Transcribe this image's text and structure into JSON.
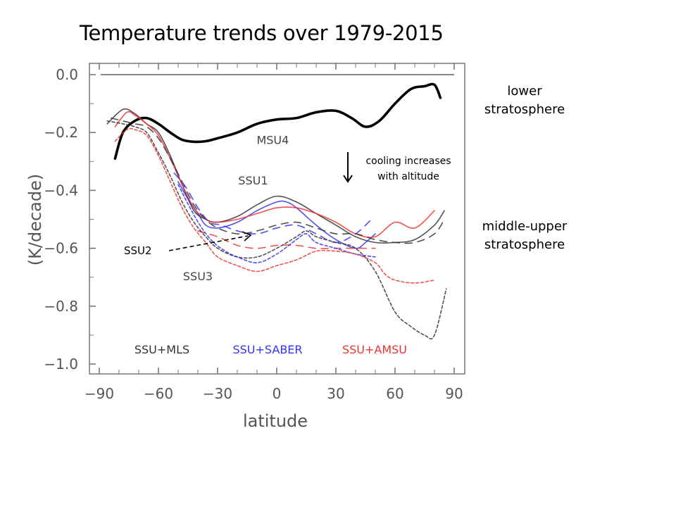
{
  "slide": {
    "title": "Temperature trends over 1979-2015",
    "annotations": {
      "lower": [
        "lower",
        "stratosphere"
      ],
      "middle_upper": [
        "middle-upper",
        "stratosphere"
      ],
      "cooling": [
        "cooling increases",
        "with altitude"
      ],
      "ssu2_pointer": "SSU2"
    }
  },
  "colors": {
    "mls": "#333333",
    "saber": "#3333ee",
    "amsu": "#ee3333",
    "msu4": "#000000",
    "axis": "#777777"
  },
  "chart_data": {
    "type": "line",
    "title": "Temperature trends over 1979-2015",
    "xlabel": "latitude",
    "ylabel": "(K/decade)",
    "xlim": [
      -90,
      90
    ],
    "ylim": [
      -1.05,
      0.0
    ],
    "xticks": [
      -90,
      -60,
      -30,
      0,
      30,
      60,
      90
    ],
    "xtick_labels": [
      "−90",
      "−60",
      "−30",
      "0",
      "30",
      "60",
      "90"
    ],
    "yticks": [
      0.0,
      -0.2,
      -0.4,
      -0.6,
      -0.8,
      -1.0
    ],
    "ytick_labels": [
      "0.0",
      "−0.2",
      "−0.4",
      "−0.6",
      "−0.8",
      "−1.0"
    ],
    "grid": false,
    "reference_line": 0.0,
    "curve_labels": [
      {
        "text": "MSU4",
        "x": -2,
        "y": -0.24
      },
      {
        "text": "SSU1",
        "x": -12,
        "y": -0.38
      },
      {
        "text": "SSU3",
        "x": -40,
        "y": -0.71
      }
    ],
    "legend": [
      {
        "label": "SSU+MLS",
        "color_key": "mls"
      },
      {
        "label": "SSU+SABER",
        "color_key": "saber"
      },
      {
        "label": "SSU+AMSU",
        "color_key": "amsu"
      }
    ],
    "legend_placement": "bottom",
    "series": [
      {
        "name": "MSU4",
        "channel": "MSU4",
        "style": "thick-solid",
        "color_key": "msu4",
        "x": [
          -82,
          -78,
          -72,
          -66,
          -60,
          -54,
          -48,
          -42,
          -36,
          -30,
          -20,
          -10,
          0,
          10,
          20,
          30,
          38,
          45,
          52,
          60,
          68,
          75,
          80,
          83
        ],
        "y": [
          -0.29,
          -0.2,
          -0.16,
          -0.15,
          -0.17,
          -0.2,
          -0.225,
          -0.232,
          -0.23,
          -0.22,
          -0.2,
          -0.17,
          -0.155,
          -0.15,
          -0.13,
          -0.125,
          -0.15,
          -0.18,
          -0.16,
          -0.1,
          -0.05,
          -0.04,
          -0.035,
          -0.08
        ]
      },
      {
        "name": "SSU1 SSU+MLS",
        "channel": "SSU1",
        "style": "solid",
        "color_key": "mls",
        "x": [
          -86,
          -78,
          -72,
          -66,
          -60,
          -54,
          -48,
          -42,
          -36,
          -30,
          -20,
          -10,
          0,
          10,
          20,
          30,
          40,
          50,
          60,
          70,
          80,
          85
        ],
        "y": [
          -0.17,
          -0.12,
          -0.135,
          -0.17,
          -0.2,
          -0.28,
          -0.38,
          -0.47,
          -0.5,
          -0.51,
          -0.49,
          -0.45,
          -0.42,
          -0.44,
          -0.48,
          -0.52,
          -0.56,
          -0.58,
          -0.58,
          -0.57,
          -0.52,
          -0.47
        ]
      },
      {
        "name": "SSU1 SSU+SABER",
        "channel": "SSU1",
        "style": "solid",
        "color_key": "saber",
        "x": [
          -50,
          -45,
          -40,
          -36,
          -30,
          -20,
          -10,
          0,
          5,
          10,
          20,
          30,
          40,
          45,
          50
        ],
        "y": [
          -0.37,
          -0.43,
          -0.48,
          -0.52,
          -0.53,
          -0.51,
          -0.47,
          -0.44,
          -0.44,
          -0.46,
          -0.52,
          -0.57,
          -0.6,
          -0.58,
          -0.55
        ]
      },
      {
        "name": "SSU1 SSU+AMSU",
        "channel": "SSU1",
        "style": "solid",
        "color_key": "amsu",
        "x": [
          -82,
          -76,
          -72,
          -66,
          -60,
          -54,
          -48,
          -42,
          -36,
          -30,
          -20,
          -10,
          0,
          10,
          20,
          30,
          40,
          50,
          60,
          70,
          80
        ],
        "y": [
          -0.18,
          -0.13,
          -0.14,
          -0.17,
          -0.21,
          -0.29,
          -0.38,
          -0.46,
          -0.5,
          -0.51,
          -0.5,
          -0.48,
          -0.46,
          -0.46,
          -0.48,
          -0.51,
          -0.55,
          -0.56,
          -0.51,
          -0.53,
          -0.47
        ]
      },
      {
        "name": "SSU2 SSU+MLS",
        "channel": "SSU2",
        "style": "long-dash",
        "color_key": "mls",
        "x": [
          -84,
          -78,
          -72,
          -66,
          -60,
          -54,
          -48,
          -42,
          -36,
          -30,
          -20,
          -10,
          0,
          10,
          20,
          30,
          40,
          50,
          60,
          70,
          80,
          85
        ],
        "y": [
          -0.15,
          -0.16,
          -0.17,
          -0.18,
          -0.22,
          -0.29,
          -0.37,
          -0.45,
          -0.5,
          -0.53,
          -0.55,
          -0.54,
          -0.52,
          -0.51,
          -0.53,
          -0.55,
          -0.55,
          -0.57,
          -0.58,
          -0.58,
          -0.55,
          -0.5
        ]
      },
      {
        "name": "SSU2 SSU+SABER",
        "channel": "SSU2",
        "style": "long-dash",
        "color_key": "saber",
        "x": [
          -52,
          -46,
          -40,
          -34,
          -28,
          -20,
          -10,
          0,
          10,
          20,
          30,
          40,
          48
        ],
        "y": [
          -0.34,
          -0.39,
          -0.46,
          -0.51,
          -0.52,
          -0.54,
          -0.55,
          -0.53,
          -0.52,
          -0.55,
          -0.58,
          -0.55,
          -0.5
        ]
      },
      {
        "name": "SSU2 SSU+AMSU",
        "channel": "SSU2",
        "style": "long-dash",
        "color_key": "amsu",
        "x": [
          -40,
          -30,
          -20,
          -10,
          0,
          10,
          20,
          30,
          40,
          50
        ],
        "y": [
          -0.54,
          -0.56,
          -0.59,
          -0.6,
          -0.59,
          -0.59,
          -0.6,
          -0.6,
          -0.6,
          -0.6
        ]
      },
      {
        "name": "SSU3 SSU+MLS",
        "channel": "SSU3",
        "style": "short-dash",
        "color_key": "mls",
        "x": [
          -86,
          -78,
          -72,
          -66,
          -60,
          -54,
          -48,
          -42,
          -36,
          -30,
          -20,
          -10,
          0,
          10,
          15,
          20,
          30,
          40,
          50,
          60,
          68,
          75,
          80,
          86
        ],
        "y": [
          -0.16,
          -0.17,
          -0.18,
          -0.2,
          -0.27,
          -0.35,
          -0.44,
          -0.51,
          -0.56,
          -0.6,
          -0.63,
          -0.63,
          -0.6,
          -0.56,
          -0.54,
          -0.56,
          -0.58,
          -0.6,
          -0.68,
          -0.82,
          -0.87,
          -0.9,
          -0.9,
          -0.74
        ]
      },
      {
        "name": "SSU3 SSU+SABER",
        "channel": "SSU3",
        "style": "short-dash",
        "color_key": "saber",
        "x": [
          -50,
          -44,
          -38,
          -32,
          -26,
          -20,
          -10,
          0,
          10,
          15,
          20,
          30,
          40,
          50
        ],
        "y": [
          -0.38,
          -0.46,
          -0.53,
          -0.58,
          -0.61,
          -0.63,
          -0.65,
          -0.62,
          -0.57,
          -0.55,
          -0.58,
          -0.6,
          -0.62,
          -0.63
        ]
      },
      {
        "name": "SSU3 SSU+AMSU",
        "channel": "SSU3",
        "style": "short-dash",
        "color_key": "amsu",
        "x": [
          -82,
          -76,
          -72,
          -66,
          -60,
          -54,
          -48,
          -42,
          -36,
          -30,
          -20,
          -10,
          0,
          10,
          20,
          30,
          40,
          50,
          55,
          60,
          70,
          80
        ],
        "y": [
          -0.23,
          -0.19,
          -0.19,
          -0.21,
          -0.28,
          -0.37,
          -0.46,
          -0.53,
          -0.58,
          -0.63,
          -0.66,
          -0.68,
          -0.66,
          -0.64,
          -0.61,
          -0.61,
          -0.62,
          -0.65,
          -0.69,
          -0.71,
          -0.72,
          -0.71
        ]
      }
    ]
  }
}
